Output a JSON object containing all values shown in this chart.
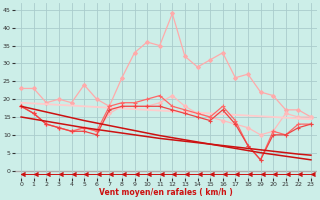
{
  "xlabel": "Vent moyen/en rafales ( km/h )",
  "bg_color": "#cceee8",
  "grid_color": "#aacccc",
  "xlim": [
    -0.5,
    23.5
  ],
  "ylim": [
    -2,
    47
  ],
  "yticks": [
    0,
    5,
    10,
    15,
    20,
    25,
    30,
    35,
    40,
    45
  ],
  "xticks": [
    0,
    1,
    2,
    3,
    4,
    5,
    6,
    7,
    8,
    9,
    10,
    11,
    12,
    13,
    14,
    15,
    16,
    17,
    18,
    19,
    20,
    21,
    22,
    23
  ],
  "series": [
    {
      "name": "rafales_lightest",
      "color": "#ffaaaa",
      "lw": 0.9,
      "marker": "D",
      "ms": 2.0,
      "data": [
        23,
        23,
        19,
        20,
        19,
        24,
        20,
        18,
        26,
        33,
        36,
        35,
        44,
        32,
        29,
        31,
        33,
        26,
        27,
        22,
        21,
        17,
        17,
        15
      ]
    },
    {
      "name": "moyen_lightest",
      "color": "#ffbbbb",
      "lw": 0.9,
      "marker": "D",
      "ms": 2.0,
      "data": [
        18,
        16,
        13,
        12,
        11,
        12,
        11,
        16,
        18,
        18,
        18,
        19,
        21,
        18,
        16,
        15,
        14,
        13,
        12,
        10,
        11,
        16,
        15,
        15
      ]
    },
    {
      "name": "trend_flat_pink",
      "color": "#ffcccc",
      "lw": 1.3,
      "marker": null,
      "ms": 0,
      "data": [
        19,
        18.8,
        18.6,
        18.4,
        18.2,
        18.0,
        17.8,
        17.6,
        17.4,
        17.2,
        17.0,
        16.8,
        16.6,
        16.4,
        16.2,
        16.0,
        15.8,
        15.6,
        15.4,
        15.2,
        15.0,
        14.8,
        14.6,
        14.4
      ]
    },
    {
      "name": "rafales_med",
      "color": "#ff6666",
      "lw": 0.9,
      "marker": "+",
      "ms": 3.5,
      "data": [
        18,
        16,
        13,
        12,
        11,
        12,
        11,
        18,
        19,
        19,
        20,
        21,
        18,
        17,
        16,
        15,
        18,
        14,
        7,
        3,
        11,
        10,
        13,
        13
      ]
    },
    {
      "name": "moyen_med",
      "color": "#ee4444",
      "lw": 0.9,
      "marker": "+",
      "ms": 3.5,
      "data": [
        18,
        16,
        13,
        12,
        11,
        11,
        10,
        17,
        18,
        18,
        18,
        18,
        17,
        16,
        15,
        14,
        17,
        13,
        7,
        3,
        10,
        10,
        12,
        13
      ]
    },
    {
      "name": "trend_red1",
      "color": "#cc1111",
      "lw": 1.1,
      "marker": null,
      "ms": 0,
      "data": [
        18,
        17.2,
        16.4,
        15.6,
        14.8,
        14.0,
        13.3,
        12.6,
        11.9,
        11.2,
        10.5,
        9.8,
        9.2,
        8.6,
        8.0,
        7.4,
        6.8,
        6.2,
        5.6,
        5.0,
        4.5,
        4.0,
        3.5,
        3.0
      ]
    },
    {
      "name": "trend_red2",
      "color": "#cc1111",
      "lw": 1.1,
      "marker": null,
      "ms": 0,
      "data": [
        15,
        14.4,
        13.8,
        13.2,
        12.6,
        12.0,
        11.5,
        11.0,
        10.5,
        10.0,
        9.5,
        9.0,
        8.6,
        8.2,
        7.8,
        7.4,
        7.0,
        6.6,
        6.2,
        5.8,
        5.4,
        5.0,
        4.6,
        4.3
      ]
    },
    {
      "name": "arrow_line",
      "color": "#cc1111",
      "lw": 0.7,
      "marker": 4,
      "ms": 3.5,
      "data": [
        -1,
        -1,
        -1,
        -1,
        -1,
        -1,
        -1,
        -1,
        -1,
        -1,
        -1,
        -1,
        -1,
        -1,
        -1,
        -1,
        -1,
        -1,
        -1,
        -1,
        -1,
        -1,
        -1,
        -1
      ]
    }
  ]
}
